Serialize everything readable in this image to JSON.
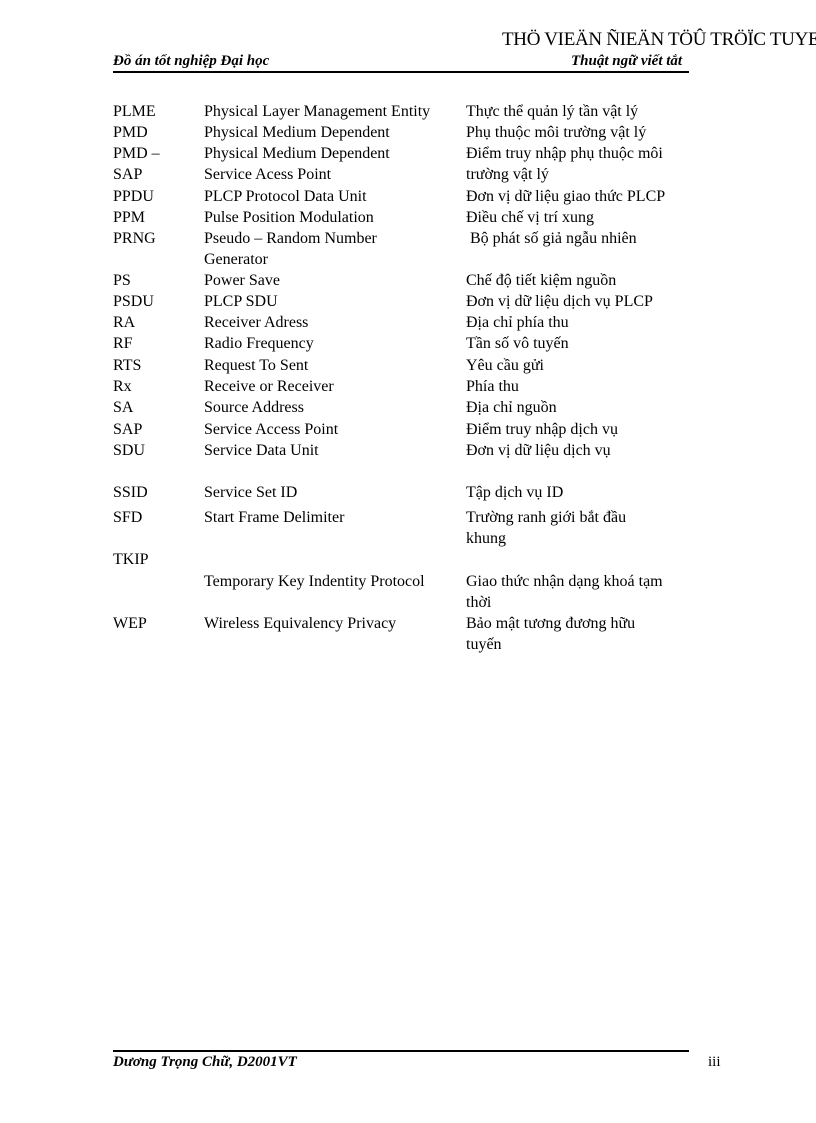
{
  "header": {
    "watermark": "THÖ VIEÄN ÑIEÄN TÖÛ TRÖÏC TUYEÁN",
    "left": "Đồ án tốt nghiệp Đại học",
    "right": "Thuật ngữ viết tắt"
  },
  "rows": [
    {
      "abbr": "PLME",
      "term": "Physical Layer Management Entity",
      "meaning": "Thực thể quản lý tần vật lý"
    },
    {
      "abbr": "PMD",
      "term": "Physical Medium Dependent",
      "meaning": "Phụ thuộc môi trường vật lý"
    },
    {
      "abbr": "PMD –\nSAP",
      "term": "Physical Medium Dependent\nService Acess Point",
      "meaning": "Điểm truy nhập phụ thuộc môi\ntrường vật lý"
    },
    {
      "abbr": "PPDU",
      "term": "PLCP Protocol Data Unit",
      "meaning": "Đơn vị dữ liệu giao thức PLCP"
    },
    {
      "abbr": "PPM",
      "term": "Pulse Position Modulation",
      "meaning": "Điều chế vị trí xung"
    },
    {
      "abbr": "PRNG",
      "term": "Pseudo – Random Number\nGenerator",
      "meaning": " Bộ phát số giả ngẫu nhiên"
    },
    {
      "abbr": "PS",
      "term": "Power Save",
      "meaning": "Chế độ tiết kiệm nguồn"
    },
    {
      "abbr": "PSDU",
      "term": "PLCP SDU",
      "meaning": "Đơn vị dữ liệu dịch vụ PLCP"
    },
    {
      "abbr": "RA",
      "term": "Receiver Adress",
      "meaning": "Địa chỉ phía thu"
    },
    {
      "abbr": "RF",
      "term": "Radio Frequency",
      "meaning": "Tần số vô tuyến"
    },
    {
      "abbr": "RTS",
      "term": "Request To Sent",
      "meaning": "Yêu cầu gửi"
    },
    {
      "abbr": "Rx",
      "term": "Receive or Receiver",
      "meaning": "Phía thu"
    },
    {
      "abbr": "SA",
      "term": "Source Address",
      "meaning": "Địa chỉ nguồn"
    },
    {
      "abbr": "SAP",
      "term": "Service Access Point",
      "meaning": "Điểm truy nhập dịch vụ"
    },
    {
      "abbr": "SDU",
      "term": "Service Data Unit",
      "meaning": "Đơn vị dữ liệu dịch vụ"
    },
    {
      "abbr": "SSID",
      "term": "Service Set ID",
      "meaning": "Tập dịch vụ ID"
    },
    {
      "abbr": "SFD",
      "term": "Start Frame Delimiter",
      "meaning": "Trường ranh giới bắt đầu\nkhung"
    },
    {
      "abbr": "TKIP",
      "term": "",
      "meaning": ""
    },
    {
      "abbr": "",
      "term": "Temporary Key Indentity Protocol",
      "meaning": "Giao thức nhận dạng khoá tạm\nthời"
    },
    {
      "abbr": "WEP",
      "term": "Wireless Equivalency Privacy",
      "meaning": "Bảo mật tương đương hữu\ntuyến"
    }
  ],
  "footer": {
    "author": "Dương Trọng Chữ, D2001VT",
    "page": "iii"
  }
}
